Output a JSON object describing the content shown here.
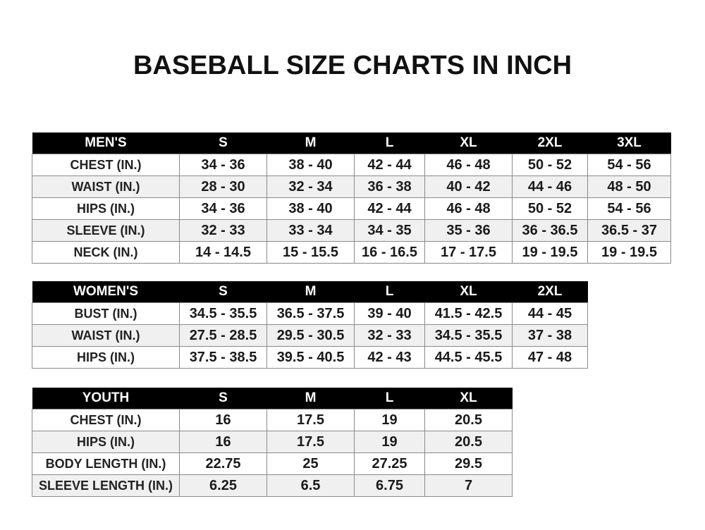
{
  "title": "BASEBALL SIZE CHARTS IN INCH",
  "men": {
    "header": [
      "MEN'S",
      "S",
      "M",
      "L",
      "XL",
      "2XL",
      "3XL"
    ],
    "rows": [
      [
        "CHEST (IN.)",
        "34 - 36",
        "38 - 40",
        "42 - 44",
        "46 - 48",
        "50 - 52",
        "54 - 56"
      ],
      [
        "WAIST (IN.)",
        "28 - 30",
        "32 - 34",
        "36 - 38",
        "40 - 42",
        "44 - 46",
        "48 - 50"
      ],
      [
        "HIPS (IN.)",
        "34 - 36",
        "38 - 40",
        "42 - 44",
        "46 - 48",
        "50 - 52",
        "54 - 56"
      ],
      [
        "SLEEVE (IN.)",
        "32 - 33",
        "33 - 34",
        "34 - 35",
        "35 - 36",
        "36 - 36.5",
        "36.5 - 37"
      ],
      [
        "NECK (IN.)",
        "14 - 14.5",
        "15 - 15.5",
        "16 - 16.5",
        "17 - 17.5",
        "19 - 19.5",
        "19 - 19.5"
      ]
    ]
  },
  "women": {
    "header": [
      "WOMEN'S",
      "S",
      "M",
      "L",
      "XL",
      "2XL"
    ],
    "rows": [
      [
        "BUST (IN.)",
        "34.5 - 35.5",
        "36.5 - 37.5",
        "39 - 40",
        "41.5 - 42.5",
        "44 - 45"
      ],
      [
        "WAIST (IN.)",
        "27.5 - 28.5",
        "29.5 - 30.5",
        "32 - 33",
        "34.5 - 35.5",
        "37 - 38"
      ],
      [
        "HIPS (IN.)",
        "37.5 - 38.5",
        "39.5 - 40.5",
        "42 - 43",
        "44.5 - 45.5",
        "47 - 48"
      ]
    ]
  },
  "youth": {
    "header": [
      "YOUTH",
      "S",
      "M",
      "L",
      "XL"
    ],
    "rows": [
      [
        "CHEST (IN.)",
        "16",
        "17.5",
        "19",
        "20.5"
      ],
      [
        "HIPS (IN.)",
        "16",
        "17.5",
        "19",
        "20.5"
      ],
      [
        "BODY LENGTH (IN.)",
        "22.75",
        "25",
        "27.25",
        "29.5"
      ],
      [
        "SLEEVE LENGTH (IN.)",
        "6.25",
        "6.5",
        "6.75",
        "7"
      ]
    ]
  }
}
